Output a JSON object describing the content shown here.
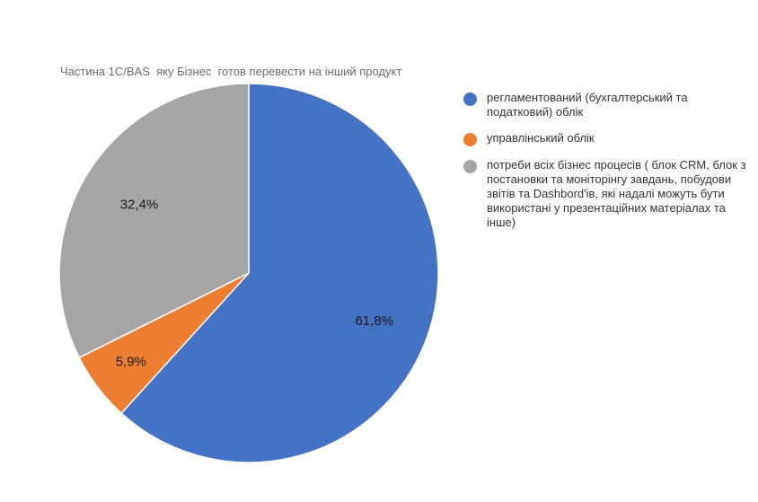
{
  "chart_data": {
    "type": "pie",
    "title": "Частина 1С/BAS  яку Бізнес  готов перевести на інший продукт",
    "slices": [
      {
        "name": "регламентований (бухгалтерський та податковий) облік",
        "value": 61.8,
        "label": "61,8%",
        "color": "#4472C4"
      },
      {
        "name": "управлінський облік",
        "value": 5.9,
        "label": "5,9%",
        "color": "#ED7D31"
      },
      {
        "name": "потреби всіх бізнес процесів ( блок CRM, блок з постановки та моніторінгу завдань, побудови звітів та Dashbord'ів, які надалі можуть бути використані у презентаційних матеріалах та інше)",
        "value": 32.4,
        "label": "32,4%",
        "color": "#A5A5A5"
      }
    ],
    "start": "12 o'clock",
    "direction": "clockwise",
    "legend_position": "right"
  }
}
